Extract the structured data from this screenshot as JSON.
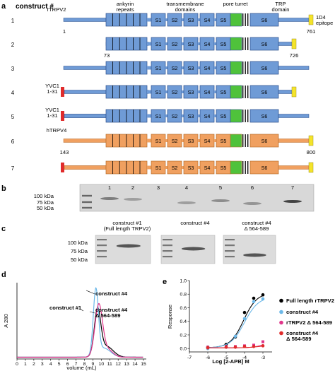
{
  "panel_a": {
    "letter": "a",
    "title": "construct #",
    "header_labels": [
      "ankyrin\nrepeats",
      "transmembrane\ndomains",
      "pore turret",
      "TRP\ndomain"
    ],
    "segments": [
      "S1",
      "S2",
      "S3",
      "S4",
      "S5",
      "S6"
    ],
    "epitope_label": "1D4\nepitope",
    "rows": [
      {
        "num": "1",
        "left_label": "rTRPV2",
        "start": "1",
        "end": "761",
        "species": "rat",
        "color": "#6f9bd6",
        "yvc": false,
        "epitope": true,
        "truncated": false
      },
      {
        "num": "2",
        "left_label": "",
        "start": "73",
        "end": "726",
        "species": "rat",
        "color": "#6f9bd6",
        "yvc": false,
        "epitope": true,
        "truncated": true
      },
      {
        "num": "3",
        "left_label": "",
        "start": "",
        "end": "",
        "species": "rat",
        "color": "#6f9bd6",
        "yvc": false,
        "epitope": false,
        "truncated": false
      },
      {
        "num": "4",
        "left_label": "YVC1\n1-31",
        "start": "",
        "end": "",
        "species": "rat",
        "color": "#6f9bd6",
        "yvc": true,
        "epitope": true,
        "truncated": true
      },
      {
        "num": "5",
        "left_label": "YVC1\n1-31",
        "start": "",
        "end": "",
        "species": "rat",
        "color": "#6f9bd6",
        "yvc": true,
        "epitope": false,
        "truncated": false
      },
      {
        "num": "6",
        "left_label": "hTRPV4",
        "start": "143",
        "end": "800",
        "species": "human",
        "color": "#f0a060",
        "yvc": false,
        "epitope": true,
        "truncated": false
      },
      {
        "num": "7",
        "left_label": "",
        "start": "",
        "end": "",
        "species": "human",
        "color": "#f0a060",
        "yvc": true,
        "epitope": true,
        "truncated": false
      }
    ],
    "colors": {
      "rat": "#6f9bd6",
      "human": "#f0a060",
      "pore": "#4fc23b",
      "yvc": "#e02b2b",
      "epitope": "#f4e42a"
    }
  },
  "panel_b": {
    "letter": "b",
    "markers": [
      "100 kDa",
      "75 kDa",
      "50 kDa"
    ],
    "lanes": [
      "1",
      "2",
      "3",
      "4",
      "5",
      "6",
      "7"
    ]
  },
  "panel_c": {
    "letter": "c",
    "markers": [
      "100 kDa",
      "75 kDa",
      "50 kDa"
    ],
    "gel_labels": [
      "construct #1\n(Full length TRPV2)",
      "construct #4",
      "construct #4\nΔ 564-589"
    ]
  },
  "panel_d": {
    "letter": "d",
    "ylabel": "A 280",
    "xlabel": "volume (mL)",
    "xticks": [
      "0",
      "1",
      "2",
      "3",
      "4",
      "5",
      "6",
      "7",
      "8",
      "9",
      "10",
      "11",
      "12",
      "13",
      "14",
      "15"
    ],
    "annotations": [
      "construct #4",
      "construct #4\nΔ 564-589",
      "construct #1"
    ],
    "series_colors": [
      "#000000",
      "#6cb8e8",
      "#e0358a"
    ]
  },
  "chart_data": {
    "type": "scatter",
    "xlabel": "Log [2-APB] M",
    "ylabel": "Response",
    "xlim": [
      -7,
      -2.5
    ],
    "ylim": [
      -0.05,
      1.0
    ],
    "xticks": [
      -7,
      -6,
      -5,
      -4,
      -3
    ],
    "yticks": [
      0,
      0.2,
      0.4,
      0.6,
      0.8,
      1.0
    ],
    "legend_position": "right",
    "series": [
      {
        "name": "Full length rTRPV2",
        "color": "#000000",
        "marker": "circle",
        "points": [
          [
            -6,
            0.02
          ],
          [
            -5,
            0.06
          ],
          [
            -4.5,
            0.17
          ],
          [
            -4,
            0.53
          ],
          [
            -3.5,
            0.74
          ],
          [
            -3,
            0.79
          ]
        ]
      },
      {
        "name": "construct #4",
        "color": "#6cb8e8",
        "marker": "circle",
        "points": [
          [
            -6,
            0.0
          ],
          [
            -5,
            0.02
          ],
          [
            -4.5,
            0.18
          ],
          [
            -4,
            0.44
          ],
          [
            -3.5,
            0.69
          ],
          [
            -3,
            0.73
          ]
        ]
      },
      {
        "name": "rTRPV2 Δ 564-589",
        "color": "#e0358a",
        "marker": "square",
        "points": [
          [
            -6,
            0.02
          ],
          [
            -5,
            0.03
          ],
          [
            -4.5,
            0.03
          ],
          [
            -4,
            0.04
          ],
          [
            -3.5,
            0.05
          ],
          [
            -3,
            0.1
          ]
        ]
      },
      {
        "name": "construct #4\nΔ 564-589",
        "color": "#e02b2b",
        "marker": "circle",
        "points": [
          [
            -6,
            0.01
          ],
          [
            -5,
            0.02
          ],
          [
            -4.5,
            0.02
          ],
          [
            -4,
            0.03
          ],
          [
            -3.5,
            0.03
          ],
          [
            -3,
            0.04
          ]
        ]
      }
    ]
  }
}
